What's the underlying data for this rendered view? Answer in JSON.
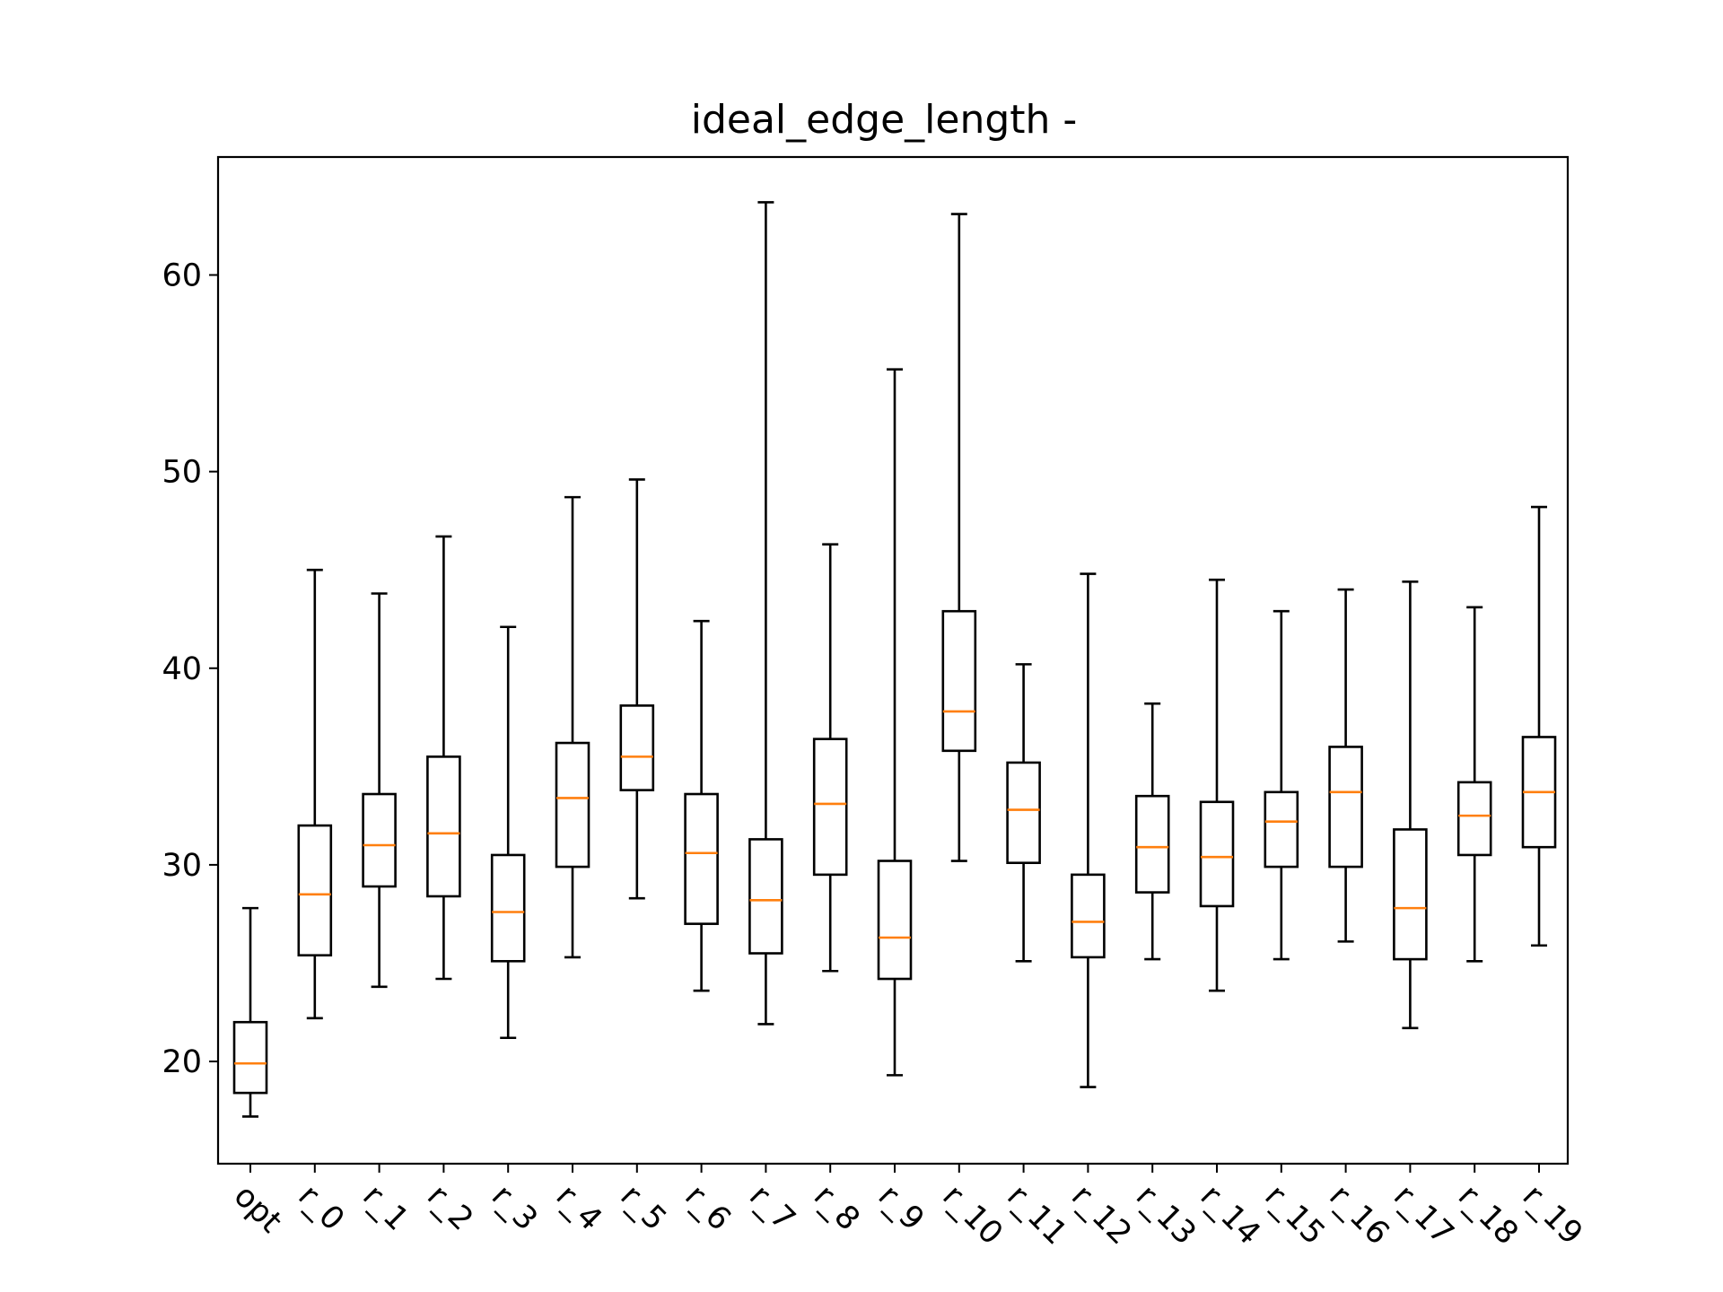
{
  "chart_data": {
    "type": "boxplot",
    "title": "ideal_edge_length -",
    "xlabel": "",
    "ylabel": "",
    "ylim": [
      14.8,
      66.0
    ],
    "yticks": [
      20,
      30,
      40,
      50,
      60
    ],
    "grid": false,
    "colors": {
      "box": "#000000",
      "median": "#ff7f0e",
      "frame": "#000000"
    },
    "categories": [
      "opt",
      "r_0",
      "r_1",
      "r_2",
      "r_3",
      "r_4",
      "r_5",
      "r_6",
      "r_7",
      "r_8",
      "r_9",
      "r_10",
      "r_11",
      "r_12",
      "r_13",
      "r_14",
      "r_15",
      "r_16",
      "r_17",
      "r_18",
      "r_19"
    ],
    "boxes": [
      {
        "label": "opt",
        "whislo": 17.2,
        "q1": 18.4,
        "med": 19.9,
        "q3": 22.0,
        "whishi": 27.8
      },
      {
        "label": "r_0",
        "whislo": 22.2,
        "q1": 25.4,
        "med": 28.5,
        "q3": 32.0,
        "whishi": 45.0
      },
      {
        "label": "r_1",
        "whislo": 23.8,
        "q1": 28.9,
        "med": 31.0,
        "q3": 33.6,
        "whishi": 43.8
      },
      {
        "label": "r_2",
        "whislo": 24.2,
        "q1": 28.4,
        "med": 31.6,
        "q3": 35.5,
        "whishi": 46.7
      },
      {
        "label": "r_3",
        "whislo": 21.2,
        "q1": 25.1,
        "med": 27.6,
        "q3": 30.5,
        "whishi": 42.1
      },
      {
        "label": "r_4",
        "whislo": 25.3,
        "q1": 29.9,
        "med": 33.4,
        "q3": 36.2,
        "whishi": 48.7
      },
      {
        "label": "r_5",
        "whislo": 28.3,
        "q1": 33.8,
        "med": 35.5,
        "q3": 38.1,
        "whishi": 49.6
      },
      {
        "label": "r_6",
        "whislo": 23.6,
        "q1": 27.0,
        "med": 30.6,
        "q3": 33.6,
        "whishi": 42.4
      },
      {
        "label": "r_7",
        "whislo": 21.9,
        "q1": 25.5,
        "med": 28.2,
        "q3": 31.3,
        "whishi": 63.7
      },
      {
        "label": "r_8",
        "whislo": 24.6,
        "q1": 29.5,
        "med": 33.1,
        "q3": 36.4,
        "whishi": 46.3
      },
      {
        "label": "r_9",
        "whislo": 19.3,
        "q1": 24.2,
        "med": 26.3,
        "q3": 30.2,
        "whishi": 55.2
      },
      {
        "label": "r_10",
        "whislo": 30.2,
        "q1": 35.8,
        "med": 37.8,
        "q3": 42.9,
        "whishi": 63.1
      },
      {
        "label": "r_11",
        "whislo": 25.1,
        "q1": 30.1,
        "med": 32.8,
        "q3": 35.2,
        "whishi": 40.2
      },
      {
        "label": "r_12",
        "whislo": 18.7,
        "q1": 25.3,
        "med": 27.1,
        "q3": 29.5,
        "whishi": 44.8
      },
      {
        "label": "r_13",
        "whislo": 25.2,
        "q1": 28.6,
        "med": 30.9,
        "q3": 33.5,
        "whishi": 38.2
      },
      {
        "label": "r_14",
        "whislo": 23.6,
        "q1": 27.9,
        "med": 30.4,
        "q3": 33.2,
        "whishi": 44.5
      },
      {
        "label": "r_15",
        "whislo": 25.2,
        "q1": 29.9,
        "med": 32.2,
        "q3": 33.7,
        "whishi": 42.9
      },
      {
        "label": "r_16",
        "whislo": 26.1,
        "q1": 29.9,
        "med": 33.7,
        "q3": 36.0,
        "whishi": 44.0
      },
      {
        "label": "r_17",
        "whislo": 21.7,
        "q1": 25.2,
        "med": 27.8,
        "q3": 31.8,
        "whishi": 44.4
      },
      {
        "label": "r_18",
        "whislo": 25.1,
        "q1": 30.5,
        "med": 32.5,
        "q3": 34.2,
        "whishi": 43.1
      },
      {
        "label": "r_19",
        "whislo": 25.9,
        "q1": 30.9,
        "med": 33.7,
        "q3": 36.5,
        "whishi": 48.2
      }
    ]
  }
}
